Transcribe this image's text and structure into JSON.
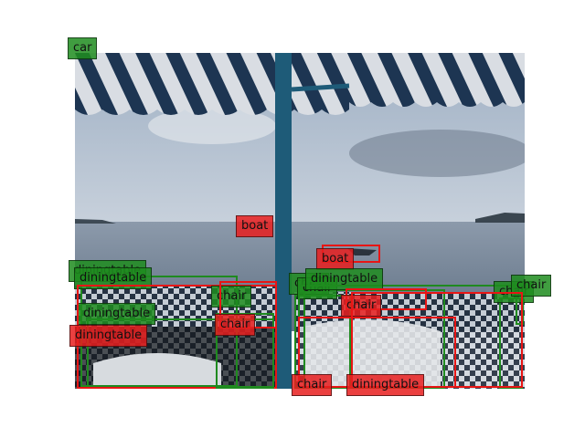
{
  "scene": {
    "kind": "annotated photo: seaside cafe under striped awning",
    "colors": {
      "sky_top": "#9fb0c4",
      "sky_bottom": "#c8d1dc",
      "sea": "#7f8fa2",
      "awning_stripe_dark": "#1d3552",
      "awning_stripe_light": "#d9dde3",
      "pole": "#1e5b78",
      "tablecloth_dark": "#1e2a3a",
      "tablecloth_light": "#cfd5dc",
      "ground_truth_box": "#1f8a1f",
      "prediction_box": "#e81515"
    }
  },
  "detections": [
    {
      "label": "car",
      "source": "ground_truth"
    },
    {
      "label": "boat",
      "source": "prediction"
    },
    {
      "label": "boat",
      "source": "prediction"
    },
    {
      "label": "diningtable",
      "source": "ground_truth"
    },
    {
      "label": "diningtable",
      "source": "ground_truth"
    },
    {
      "label": "diningtable",
      "source": "ground_truth"
    },
    {
      "label": "diningtable",
      "source": "prediction"
    },
    {
      "label": "chair",
      "source": "ground_truth"
    },
    {
      "label": "chair",
      "source": "prediction"
    },
    {
      "label": "chair",
      "source": "ground_truth"
    },
    {
      "label": "chair",
      "source": "ground_truth"
    },
    {
      "label": "diningtable",
      "source": "ground_truth"
    },
    {
      "label": "chair",
      "source": "prediction"
    },
    {
      "label": "chair",
      "source": "ground_truth"
    },
    {
      "label": "chair",
      "source": "ground_truth"
    },
    {
      "label": "chair",
      "source": "prediction"
    },
    {
      "label": "diningtable",
      "source": "prediction"
    }
  ]
}
